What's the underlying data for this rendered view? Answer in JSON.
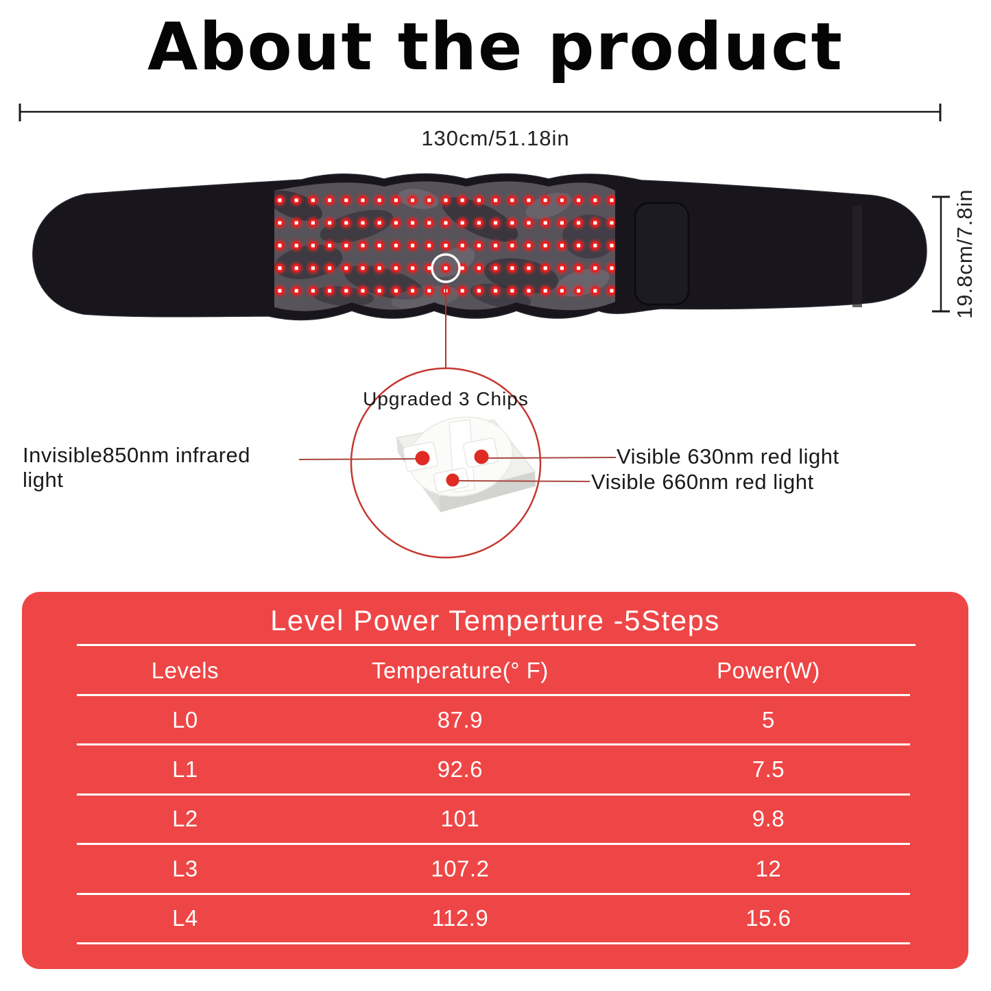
{
  "title": "About the product",
  "dimensions": {
    "width_label": "130cm/51.18in",
    "height_label": "19.8cm/7.8in"
  },
  "chip_callout": {
    "heading": "Upgraded 3 Chips",
    "left_label": "Invisible850nm infrared light",
    "right_top_label": "Visible 630nm red light",
    "right_bottom_label": "Visible 660nm red light"
  },
  "spec_table": {
    "title": "Level Power Temperture -5Steps",
    "columns": [
      "Levels",
      "Temperature(° F)",
      "Power(W)"
    ],
    "rows": [
      {
        "level": "L0",
        "temperature": "87.9",
        "power": "5"
      },
      {
        "level": "L1",
        "temperature": "92.6",
        "power": "7.5"
      },
      {
        "level": "L2",
        "temperature": "101",
        "power": "9.8"
      },
      {
        "level": "L3",
        "temperature": "107.2",
        "power": "12"
      },
      {
        "level": "L4",
        "temperature": "112.9",
        "power": "15.6"
      }
    ],
    "accent_color": "#ee4646",
    "led_red": "#e81e1e",
    "callout_line_color": "#a8473f"
  }
}
